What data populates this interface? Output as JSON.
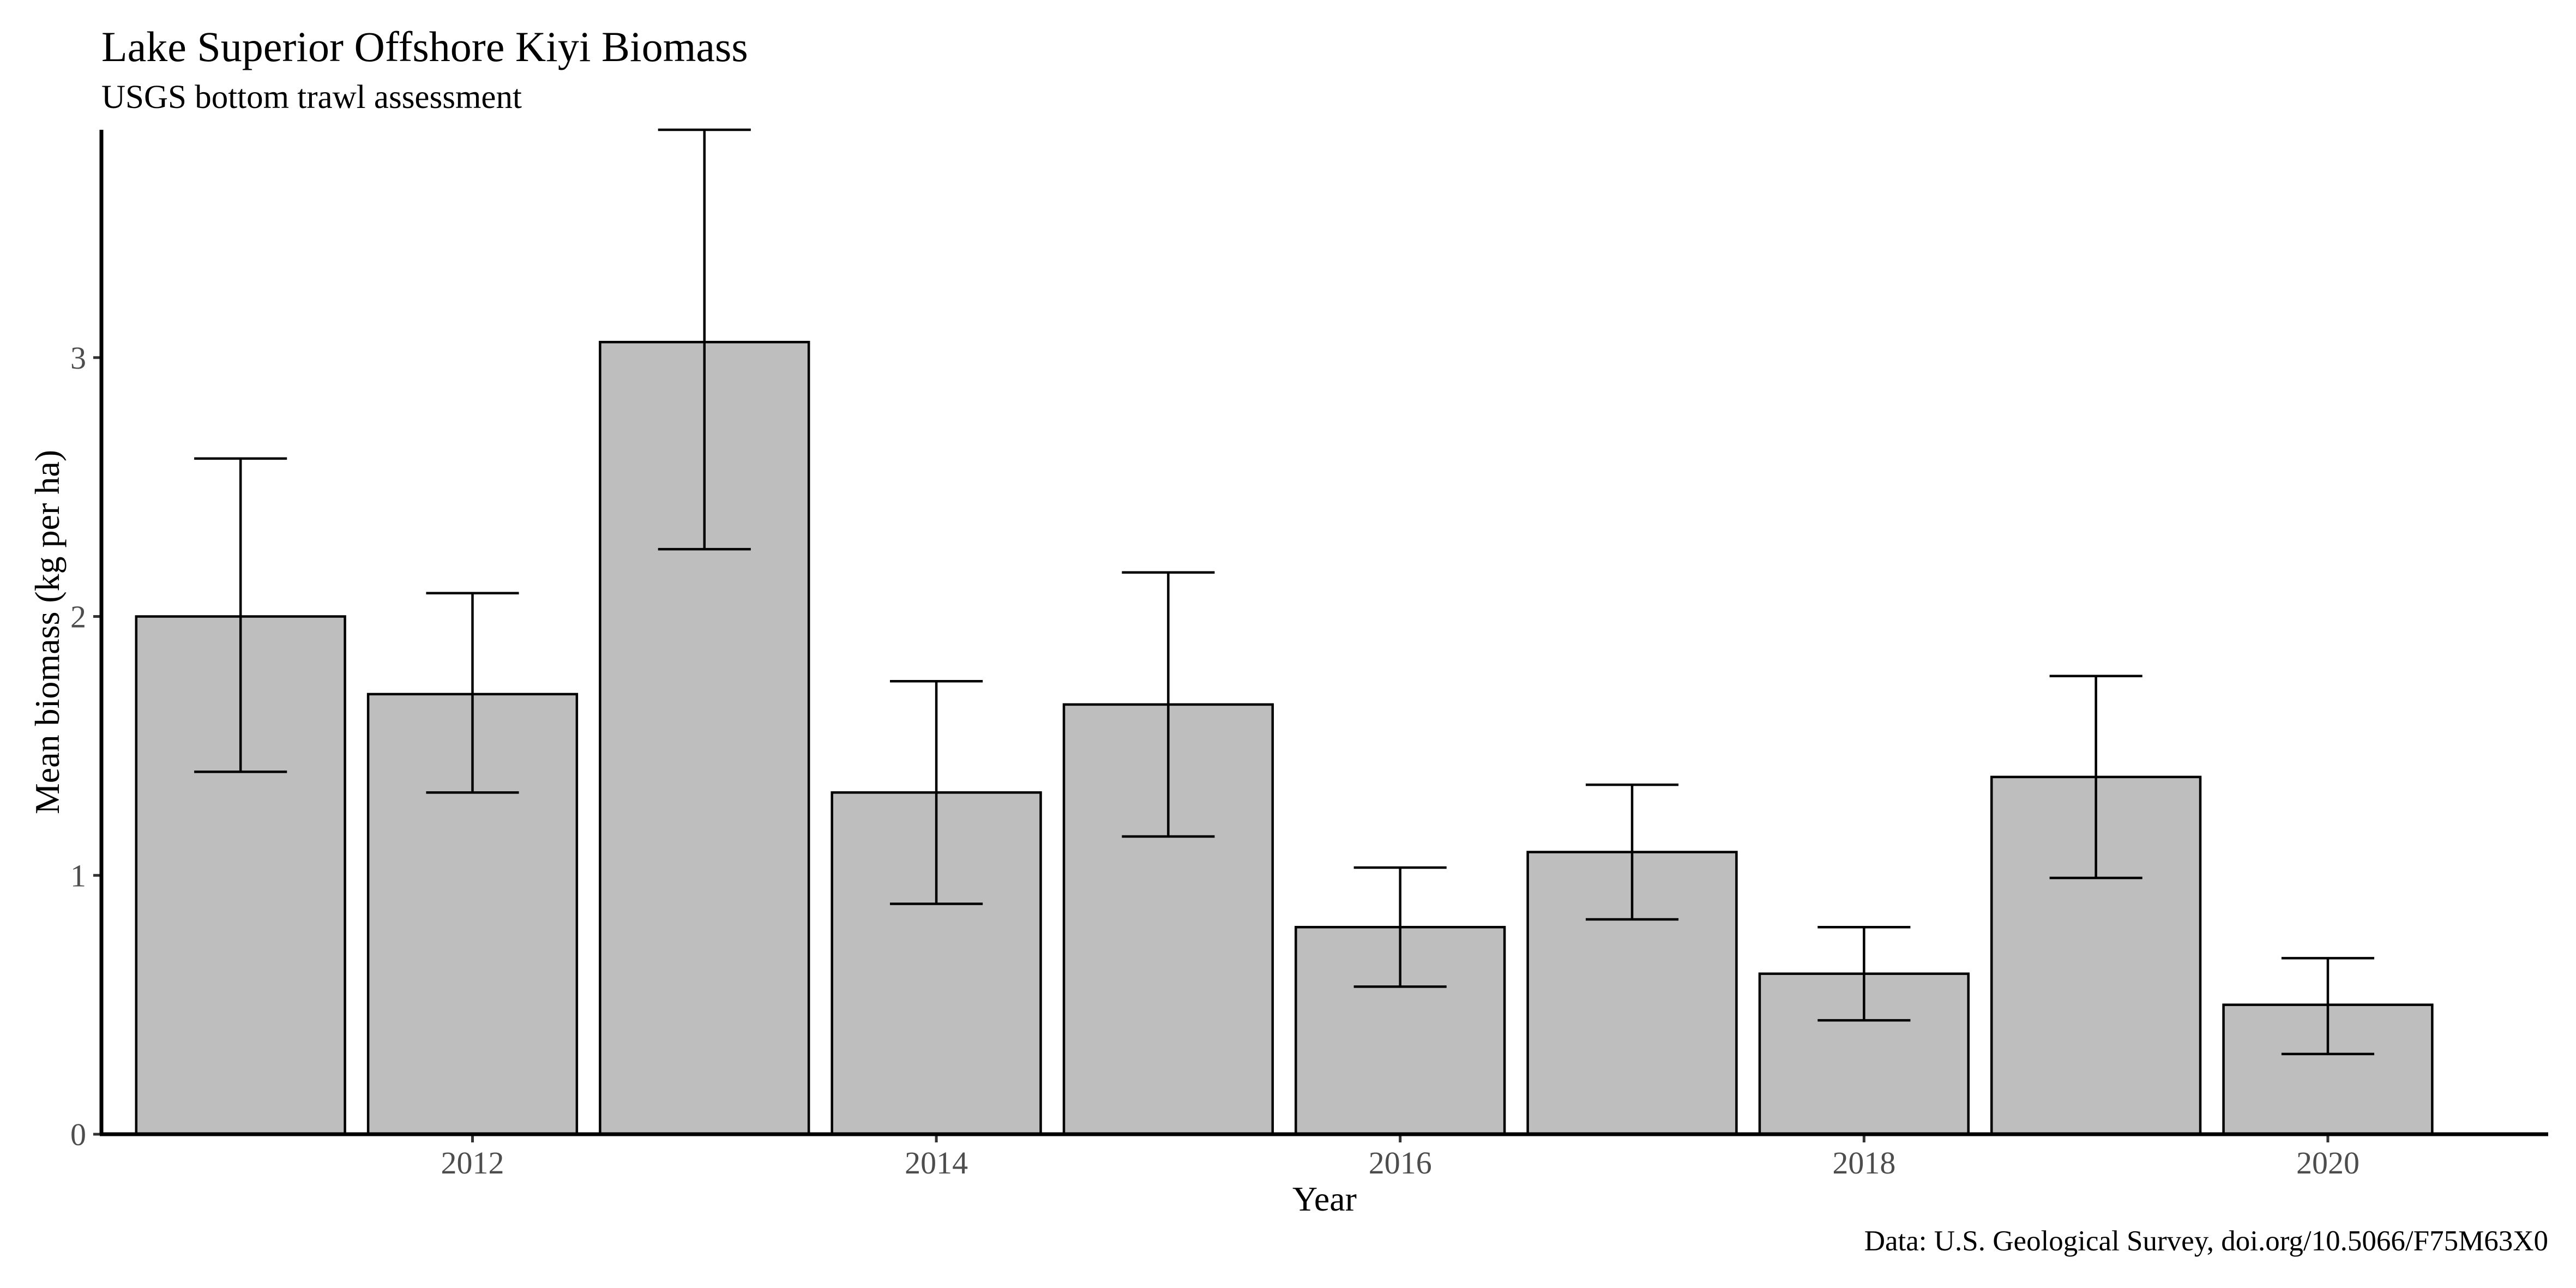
{
  "chart_data": {
    "type": "bar",
    "title": "Lake Superior Offshore Kiyi Biomass",
    "subtitle": "USGS bottom trawl assessment",
    "xlabel": "Year",
    "ylabel": "Mean biomass (kg per ha)",
    "caption": "Data: U.S. Geological Survey, doi.org/10.5066/F75M63X0",
    "x": [
      2011,
      2012,
      2013,
      2014,
      2015,
      2016,
      2017,
      2018,
      2019,
      2020
    ],
    "values": [
      2.0,
      1.7,
      3.06,
      1.32,
      1.66,
      0.8,
      1.09,
      0.62,
      1.38,
      0.5
    ],
    "error_lower": [
      1.4,
      1.32,
      2.26,
      0.89,
      1.15,
      0.57,
      0.83,
      0.44,
      0.99,
      0.31
    ],
    "error_upper": [
      2.61,
      2.09,
      3.88,
      1.75,
      2.17,
      1.03,
      1.35,
      0.8,
      1.77,
      0.68
    ],
    "xlim": [
      2010.4,
      2020.95
    ],
    "ylim": [
      0,
      3.88
    ],
    "x_ticks": [
      2012,
      2014,
      2016,
      2018,
      2020
    ],
    "x_tick_labels": [
      "2012",
      "2014",
      "2016",
      "2018",
      "2020"
    ],
    "y_ticks": [
      0,
      1,
      2,
      3
    ],
    "y_tick_labels": [
      "0",
      "1",
      "2",
      "3"
    ],
    "bar_fill": "#bebebe",
    "bar_outline": "#000000",
    "grid": false,
    "legend": "none"
  }
}
